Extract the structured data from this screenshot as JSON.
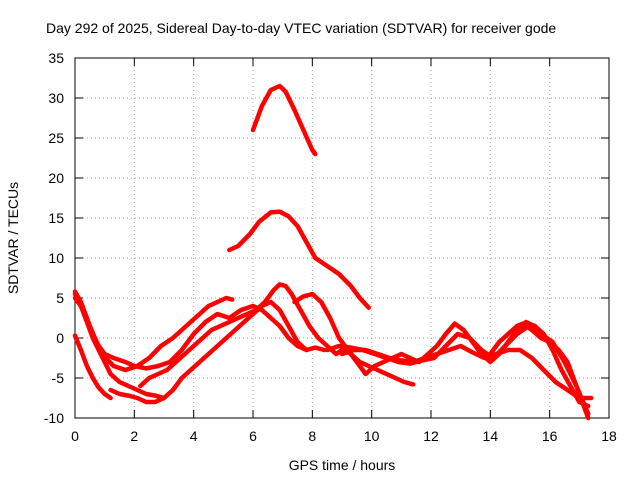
{
  "chart_data": {
    "type": "line",
    "title": "Day 292 of 2025, Sidereal Day-to-day VTEC variation (SDTVAR) for receiver gode",
    "xlabel": "GPS time / hours",
    "ylabel": "SDTVAR / TECUs",
    "xlim": [
      0,
      18
    ],
    "ylim": [
      -10,
      35
    ],
    "xticks": [
      0,
      2,
      4,
      6,
      8,
      10,
      12,
      14,
      16,
      18
    ],
    "yticks": [
      -10,
      -5,
      0,
      5,
      10,
      15,
      20,
      25,
      30,
      35
    ],
    "grid": true,
    "color": "#ff0000",
    "series": [
      {
        "name": "arc-1",
        "x": [
          6.0,
          6.3,
          6.6,
          6.9,
          7.1,
          7.4,
          7.7,
          8.0,
          8.1
        ],
        "y": [
          26,
          29,
          31,
          31.5,
          30.8,
          28.5,
          26,
          23.5,
          23
        ]
      },
      {
        "name": "arc-2",
        "x": [
          5.2,
          5.5,
          5.9,
          6.2,
          6.6,
          6.9,
          7.2,
          7.5,
          7.8,
          8.1,
          8.5,
          8.9,
          9.3,
          9.6,
          9.9
        ],
        "y": [
          11,
          11.5,
          13,
          14.5,
          15.7,
          15.8,
          15.2,
          14,
          12,
          10,
          9,
          8,
          6.5,
          5,
          3.8
        ]
      },
      {
        "name": "arc-3",
        "x": [
          0.0,
          0.2,
          0.4,
          0.6,
          0.8,
          1.0,
          1.3,
          1.7,
          2.0,
          2.4,
          2.8,
          3.2,
          3.6,
          4.0,
          4.4,
          4.8,
          5.2,
          5.6,
          6.0,
          6.3,
          6.6,
          6.9,
          7.2,
          7.5,
          7.8,
          8.1,
          8.4
        ],
        "y": [
          5.8,
          4.5,
          2.5,
          0.5,
          -1,
          -2,
          -2.5,
          -3,
          -3.5,
          -3.8,
          -3.5,
          -3,
          -1.5,
          0.5,
          2,
          3,
          2.5,
          3.5,
          4,
          3.5,
          2.5,
          1.5,
          0,
          -1,
          -1.5,
          -1.2,
          -1.5
        ]
      },
      {
        "name": "arc-4",
        "x": [
          0.0,
          0.2,
          0.5,
          0.9,
          1.3,
          1.7,
          2.1,
          2.5,
          2.9,
          3.3,
          3.6,
          3.9,
          4.2,
          4.5,
          4.8,
          5.1,
          5.3
        ],
        "y": [
          5.5,
          4,
          1.5,
          -2,
          -3.5,
          -4,
          -3.5,
          -2.5,
          -1,
          0,
          1,
          2,
          3,
          4,
          4.5,
          5,
          4.8
        ]
      },
      {
        "name": "arc-5",
        "x": [
          0.0,
          0.2,
          0.4,
          0.6,
          0.8,
          1.0,
          1.2,
          1.5,
          1.8,
          2.1,
          2.4,
          2.7,
          3.0
        ],
        "y": [
          5,
          4,
          2,
          0,
          -1.5,
          -3,
          -4.5,
          -5.5,
          -6,
          -6.5,
          -7,
          -7.2,
          -7.5
        ]
      },
      {
        "name": "arc-6",
        "x": [
          0.0,
          0.2,
          0.4,
          0.6,
          0.8,
          1.0,
          1.2
        ],
        "y": [
          0.3,
          -1.5,
          -3.5,
          -5,
          -6.2,
          -7,
          -7.5
        ]
      },
      {
        "name": "arc-7",
        "x": [
          1.2,
          1.5,
          1.8,
          2.1,
          2.4,
          2.7,
          3.0,
          3.3,
          3.6,
          3.9,
          4.2,
          4.5,
          4.8,
          5.1,
          5.4,
          5.7,
          6.0,
          6.3,
          6.6,
          6.9,
          7.2,
          7.5,
          7.8
        ],
        "y": [
          -6.5,
          -7,
          -7.2,
          -7.5,
          -8,
          -8,
          -7.5,
          -6.5,
          -5,
          -4,
          -3,
          -2,
          -1,
          0,
          1,
          2,
          3,
          4,
          4.5,
          3.5,
          1.5,
          -0.5,
          -1.5
        ]
      },
      {
        "name": "arc-8",
        "x": [
          2.2,
          2.5,
          2.8,
          3.1,
          3.4,
          3.7,
          4.0,
          4.3,
          4.6,
          4.9,
          5.2,
          5.5,
          5.8,
          6.1,
          6.4,
          6.7,
          6.9,
          7.1,
          7.3,
          7.6,
          7.9,
          8.2,
          8.5,
          8.8,
          9.0,
          9.3,
          9.6,
          9.9,
          10.2,
          10.5,
          10.8,
          11.1,
          11.4
        ],
        "y": [
          -6,
          -5,
          -4.5,
          -4,
          -3,
          -2,
          -1,
          0,
          1,
          1.5,
          2,
          2.5,
          3,
          3.5,
          4.5,
          6,
          6.7,
          6.5,
          5.5,
          3.5,
          1.5,
          0,
          -1,
          -2,
          -1.5,
          -2,
          -3,
          -3.5,
          -4,
          -4.5,
          -5,
          -5.5,
          -5.8
        ]
      },
      {
        "name": "arc-9",
        "x": [
          7.4,
          7.7,
          8.0,
          8.3,
          8.6,
          8.9,
          9.2,
          9.5,
          9.8,
          10.1,
          10.4,
          10.7,
          11.0,
          11.3,
          11.6,
          11.9,
          12.2,
          12.5,
          12.8,
          13.1,
          13.4,
          13.7,
          14.0,
          14.3,
          14.6,
          14.9,
          15.2,
          15.5,
          15.8,
          16.1,
          16.4,
          16.7,
          17.0,
          17.3
        ],
        "y": [
          4.5,
          5.2,
          5.5,
          4.5,
          2.5,
          0,
          -1.5,
          -3,
          -4.5,
          -3.5,
          -3,
          -2.5,
          -2,
          -2.5,
          -3,
          -2,
          -1,
          0.5,
          1.8,
          1,
          -0.5,
          -2,
          -3,
          -2,
          -0.5,
          1,
          2,
          1.5,
          0.5,
          -1.5,
          -4,
          -6,
          -8,
          -8.5
        ]
      },
      {
        "name": "arc-10",
        "x": [
          9.0,
          9.4,
          9.8,
          10.2,
          10.6,
          11.0,
          11.4,
          11.8,
          12.2,
          12.6,
          13.0,
          13.4,
          13.8,
          14.2,
          14.6,
          15.0,
          15.4,
          15.8,
          16.2,
          16.6,
          17.0,
          17.4
        ],
        "y": [
          -2,
          -1.5,
          -1.5,
          -2,
          -2.5,
          -2.8,
          -3,
          -2.5,
          -2,
          -1.5,
          -1,
          -1.8,
          -2.5,
          -2,
          -1.5,
          -1.5,
          -2.5,
          -4,
          -5.5,
          -6.5,
          -7.5,
          -7.5
        ]
      },
      {
        "name": "arc-11",
        "x": [
          8.5,
          8.9,
          9.3,
          9.7,
          10.1,
          10.5,
          10.9,
          11.3,
          11.7,
          12.1,
          12.5,
          12.9,
          13.3,
          13.7,
          14.1,
          14.5,
          14.9,
          15.3,
          15.7,
          16.1,
          16.5,
          16.9,
          17.3
        ],
        "y": [
          -1.5,
          -1,
          -1.2,
          -1.5,
          -2,
          -2.5,
          -3,
          -3.2,
          -2.8,
          -2.5,
          -1,
          0.5,
          0,
          -1.5,
          -2.5,
          -1,
          0.5,
          1.5,
          0.5,
          -0.5,
          -3,
          -6,
          -9.5
        ]
      },
      {
        "name": "arc-12",
        "x": [
          14.0,
          14.3,
          14.6,
          14.9,
          15.1,
          15.4,
          15.7,
          16.0,
          16.3,
          16.6,
          16.9,
          17.1,
          17.3
        ],
        "y": [
          -2,
          -0.5,
          0.5,
          1.5,
          1.8,
          1,
          0,
          -0.5,
          -1.5,
          -3,
          -6,
          -8,
          -10
        ]
      }
    ]
  }
}
